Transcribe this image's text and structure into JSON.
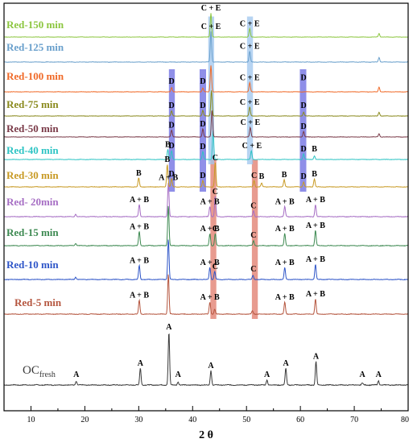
{
  "chart_data": {
    "type": "line",
    "title": "",
    "xlabel": "2 θ",
    "ylabel": "",
    "xlim": [
      5,
      80
    ],
    "x_ticks": [
      10,
      20,
      30,
      40,
      50,
      60,
      70,
      80
    ],
    "grid": false,
    "legend": "none",
    "series": [
      {
        "name": "OC",
        "name_sub": "fresh",
        "color": "#3a3a3a",
        "peaks": [
          {
            "x": 18.4,
            "h": 0.07
          },
          {
            "x": 30.3,
            "h": 0.32
          },
          {
            "x": 35.6,
            "h": 1.0
          },
          {
            "x": 37.3,
            "h": 0.06
          },
          {
            "x": 43.4,
            "h": 0.27
          },
          {
            "x": 53.8,
            "h": 0.1
          },
          {
            "x": 57.3,
            "h": 0.32
          },
          {
            "x": 62.9,
            "h": 0.45
          },
          {
            "x": 71.5,
            "h": 0.04
          },
          {
            "x": 74.5,
            "h": 0.08
          }
        ],
        "annotations": [
          {
            "x": 18.4,
            "text": "A"
          },
          {
            "x": 30.3,
            "text": "A"
          },
          {
            "x": 35.6,
            "text": "A"
          },
          {
            "x": 37.3,
            "text": "A"
          },
          {
            "x": 43.4,
            "text": "A"
          },
          {
            "x": 53.8,
            "text": "A"
          },
          {
            "x": 57.3,
            "text": "A"
          },
          {
            "x": 62.9,
            "text": "A"
          },
          {
            "x": 71.5,
            "text": "A"
          },
          {
            "x": 74.5,
            "text": "A"
          }
        ]
      },
      {
        "name": "Red-5 min",
        "color": "#b5563f",
        "peaks": [
          {
            "x": 30.1,
            "h": 0.35
          },
          {
            "x": 35.5,
            "h": 1.0
          },
          {
            "x": 43.2,
            "h": 0.3
          },
          {
            "x": 44.1,
            "h": 0.12
          },
          {
            "x": 51.1,
            "h": 0.08
          },
          {
            "x": 57.1,
            "h": 0.3
          },
          {
            "x": 62.8,
            "h": 0.38
          }
        ],
        "annotations": [
          {
            "x": 30.1,
            "text": "A + B"
          },
          {
            "x": 43.2,
            "text": "A + B"
          },
          {
            "x": 57.1,
            "text": "A + B"
          },
          {
            "x": 62.8,
            "text": "A + B"
          }
        ]
      },
      {
        "name": "Red-10 min",
        "color": "#2e55c8",
        "peaks": [
          {
            "x": 18.3,
            "h": 0.06
          },
          {
            "x": 30.1,
            "h": 0.35
          },
          {
            "x": 35.5,
            "h": 1.0
          },
          {
            "x": 43.2,
            "h": 0.3
          },
          {
            "x": 44.1,
            "h": 0.2
          },
          {
            "x": 51.2,
            "h": 0.1
          },
          {
            "x": 57.1,
            "h": 0.3
          },
          {
            "x": 62.8,
            "h": 0.38
          }
        ],
        "annotations": [
          {
            "x": 30.1,
            "text": "A + B"
          },
          {
            "x": 43.2,
            "text": "A + B"
          },
          {
            "x": 44.2,
            "text": "C"
          },
          {
            "x": 51.3,
            "text": "C"
          },
          {
            "x": 57.1,
            "text": "A + B"
          },
          {
            "x": 62.8,
            "text": "A + B"
          }
        ]
      },
      {
        "name": "Red-15 min",
        "color": "#3e8a52",
        "peaks": [
          {
            "x": 18.3,
            "h": 0.06
          },
          {
            "x": 30.1,
            "h": 0.35
          },
          {
            "x": 35.5,
            "h": 1.0
          },
          {
            "x": 43.2,
            "h": 0.3
          },
          {
            "x": 44.2,
            "h": 0.3
          },
          {
            "x": 51.3,
            "h": 0.12
          },
          {
            "x": 57.1,
            "h": 0.3
          },
          {
            "x": 62.8,
            "h": 0.38
          }
        ],
        "annotations": [
          {
            "x": 30.1,
            "text": "A + B"
          },
          {
            "x": 43.2,
            "text": "A + B"
          },
          {
            "x": 44.2,
            "text": "C"
          },
          {
            "x": 51.3,
            "text": "C"
          },
          {
            "x": 57.1,
            "text": "A + B"
          },
          {
            "x": 62.8,
            "text": "A + B"
          }
        ]
      },
      {
        "name": "Red- 20min",
        "color": "#a66ec4",
        "peaks": [
          {
            "x": 18.3,
            "h": 0.06
          },
          {
            "x": 30.1,
            "h": 0.3
          },
          {
            "x": 35.5,
            "h": 0.85
          },
          {
            "x": 43.2,
            "h": 0.25
          },
          {
            "x": 44.2,
            "h": 0.5
          },
          {
            "x": 51.3,
            "h": 0.15
          },
          {
            "x": 57.1,
            "h": 0.25
          },
          {
            "x": 62.8,
            "h": 0.3
          }
        ],
        "annotations": [
          {
            "x": 30.1,
            "text": "A + B"
          },
          {
            "x": 35.5,
            "text": "A + B"
          },
          {
            "x": 43.2,
            "text": "A + B"
          },
          {
            "x": 44.2,
            "text": "C"
          },
          {
            "x": 51.3,
            "text": "C"
          },
          {
            "x": 57.1,
            "text": "A + B"
          },
          {
            "x": 62.8,
            "text": "A + B"
          }
        ]
      },
      {
        "name": "Red-30 min",
        "color": "#c89a24",
        "peaks": [
          {
            "x": 30.0,
            "h": 0.28
          },
          {
            "x": 35.3,
            "h": 0.7
          },
          {
            "x": 36.1,
            "h": 0.25
          },
          {
            "x": 41.9,
            "h": 0.2
          },
          {
            "x": 44.2,
            "h": 0.75
          },
          {
            "x": 51.4,
            "h": 0.2
          },
          {
            "x": 52.8,
            "h": 0.12
          },
          {
            "x": 57.0,
            "h": 0.22
          },
          {
            "x": 60.6,
            "h": 0.15
          },
          {
            "x": 62.6,
            "h": 0.25
          }
        ],
        "annotations": [
          {
            "x": 30.0,
            "text": "B"
          },
          {
            "x": 35.3,
            "text": "B"
          },
          {
            "x": 36.1,
            "text": "D"
          },
          {
            "x": 41.9,
            "text": "D"
          },
          {
            "x": 44.2,
            "text": "C"
          },
          {
            "x": 51.4,
            "text": "C"
          },
          {
            "x": 52.8,
            "text": "B"
          },
          {
            "x": 57.0,
            "text": "B"
          },
          {
            "x": 60.6,
            "text": "D"
          },
          {
            "x": 62.6,
            "text": "B"
          }
        ]
      },
      {
        "name": "Red-40 min",
        "color": "#2ec4c4",
        "peaks": [
          {
            "x": 35.4,
            "h": 0.35
          },
          {
            "x": 36.1,
            "h": 0.3
          },
          {
            "x": 41.9,
            "h": 0.28
          },
          {
            "x": 43.8,
            "h": 1.0
          },
          {
            "x": 50.9,
            "h": 0.3
          },
          {
            "x": 60.6,
            "h": 0.2
          },
          {
            "x": 62.6,
            "h": 0.12
          }
        ],
        "annotations": [
          {
            "x": 35.4,
            "text": "B"
          },
          {
            "x": 36.1,
            "text": "D"
          },
          {
            "x": 41.9,
            "text": "D"
          },
          {
            "x": 51.0,
            "text": "C + E"
          },
          {
            "x": 60.6,
            "text": "D"
          },
          {
            "x": 62.6,
            "text": "B"
          }
        ]
      },
      {
        "name": "Red-50 min",
        "color": "#7a3a48",
        "peaks": [
          {
            "x": 36.1,
            "h": 0.25
          },
          {
            "x": 41.9,
            "h": 0.3
          },
          {
            "x": 43.6,
            "h": 1.0
          },
          {
            "x": 50.7,
            "h": 0.35
          },
          {
            "x": 60.6,
            "h": 0.2
          },
          {
            "x": 74.6,
            "h": 0.12
          }
        ],
        "annotations": [
          {
            "x": 36.1,
            "text": "D"
          },
          {
            "x": 41.9,
            "text": "D"
          },
          {
            "x": 50.7,
            "text": "C + E"
          },
          {
            "x": 60.6,
            "text": "D"
          }
        ]
      },
      {
        "name": "Red-75 min",
        "color": "#8a8a1e",
        "peaks": [
          {
            "x": 36.1,
            "h": 0.2
          },
          {
            "x": 41.9,
            "h": 0.22
          },
          {
            "x": 43.5,
            "h": 1.0
          },
          {
            "x": 50.6,
            "h": 0.35
          },
          {
            "x": 60.6,
            "h": 0.15
          },
          {
            "x": 74.6,
            "h": 0.15
          }
        ],
        "annotations": [
          {
            "x": 36.1,
            "text": "D"
          },
          {
            "x": 41.9,
            "text": "D"
          },
          {
            "x": 50.6,
            "text": "C + E"
          },
          {
            "x": 60.6,
            "text": "D"
          }
        ]
      },
      {
        "name": "Red-100 min",
        "color": "#f06a28",
        "peaks": [
          {
            "x": 36.1,
            "h": 0.15
          },
          {
            "x": 41.9,
            "h": 0.15
          },
          {
            "x": 43.4,
            "h": 1.0
          },
          {
            "x": 50.6,
            "h": 0.35
          },
          {
            "x": 74.6,
            "h": 0.18
          }
        ],
        "annotations": [
          {
            "x": 36.1,
            "text": "D"
          },
          {
            "x": 41.9,
            "text": "D"
          },
          {
            "x": 50.6,
            "text": "C + E"
          },
          {
            "x": 60.6,
            "text": "D"
          }
        ]
      },
      {
        "name": "Red-125 min",
        "color": "#6aa0cc",
        "peaks": [
          {
            "x": 43.4,
            "h": 1.0
          },
          {
            "x": 50.6,
            "h": 0.35
          },
          {
            "x": 74.6,
            "h": 0.15
          }
        ],
        "annotations": [
          {
            "x": 43.4,
            "text": "C + E"
          },
          {
            "x": 50.6,
            "text": "C + E"
          }
        ]
      },
      {
        "name": "Red-150 min",
        "color": "#8cc63f",
        "peaks": [
          {
            "x": 43.4,
            "h": 1.0
          },
          {
            "x": 50.6,
            "h": 0.35
          },
          {
            "x": 74.6,
            "h": 0.15
          }
        ],
        "annotations": [
          {
            "x": 43.4,
            "text": "C + E"
          },
          {
            "x": 50.6,
            "text": "C + E"
          }
        ]
      }
    ],
    "highlight_bands": [
      {
        "x": [
          43.3,
          44.4
        ],
        "color": "#e07a6a",
        "series": [
          "Red-5 min",
          "Red-10 min",
          "Red-15 min",
          "Red- 20min",
          "Red-30 min"
        ]
      },
      {
        "x": [
          51.0,
          52.1
        ],
        "color": "#e07a6a",
        "series": [
          "Red-5 min",
          "Red-10 min",
          "Red-15 min",
          "Red- 20min",
          "Red-30 min"
        ]
      },
      {
        "x": [
          42.9,
          44.0
        ],
        "color": "#9fc6ee",
        "series": [
          "Red-40 min",
          "Red-50 min",
          "Red-75 min",
          "Red-100 min",
          "Red-125 min",
          "Red-150 min"
        ]
      },
      {
        "x": [
          50.1,
          51.2
        ],
        "color": "#9fc6ee",
        "series": [
          "Red-40 min",
          "Red-50 min",
          "Red-75 min",
          "Red-100 min",
          "Red-125 min",
          "Red-150 min"
        ]
      },
      {
        "x": [
          35.6,
          36.7
        ],
        "color": "#6a6ae0",
        "series": [
          "Red-30 min",
          "Red-40 min",
          "Red-50 min",
          "Red-75 min",
          "Red-100 min"
        ]
      },
      {
        "x": [
          41.3,
          42.5
        ],
        "color": "#6a6ae0",
        "series": [
          "Red-30 min",
          "Red-40 min",
          "Red-50 min",
          "Red-75 min",
          "Red-100 min"
        ]
      },
      {
        "x": [
          59.9,
          61.1
        ],
        "color": "#6a6ae0",
        "series": [
          "Red-30 min",
          "Red-40 min",
          "Red-50 min",
          "Red-75 min",
          "Red-100 min"
        ]
      }
    ]
  }
}
